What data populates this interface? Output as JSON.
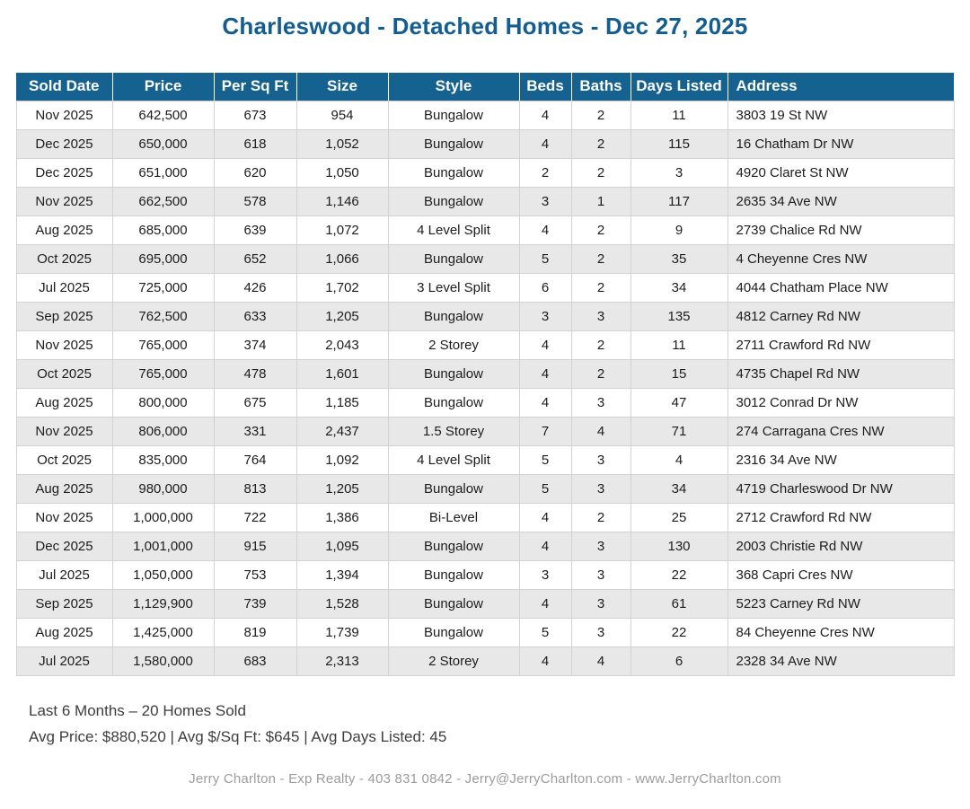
{
  "page": {
    "title": "Charleswood - Detached Homes - Dec 27, 2025"
  },
  "table": {
    "columns": [
      "Sold Date",
      "Price",
      "Per Sq Ft",
      "Size",
      "Style",
      "Beds",
      "Baths",
      "Days Listed",
      "Address"
    ],
    "rows": [
      [
        "Nov 2025",
        "642,500",
        "673",
        "954",
        "Bungalow",
        "4",
        "2",
        "11",
        "3803 19 St NW"
      ],
      [
        "Dec 2025",
        "650,000",
        "618",
        "1,052",
        "Bungalow",
        "4",
        "2",
        "115",
        "16 Chatham Dr NW"
      ],
      [
        "Dec 2025",
        "651,000",
        "620",
        "1,050",
        "Bungalow",
        "2",
        "2",
        "3",
        "4920 Claret St NW"
      ],
      [
        "Nov 2025",
        "662,500",
        "578",
        "1,146",
        "Bungalow",
        "3",
        "1",
        "117",
        "2635 34 Ave NW"
      ],
      [
        "Aug 2025",
        "685,000",
        "639",
        "1,072",
        "4 Level Split",
        "4",
        "2",
        "9",
        "2739 Chalice Rd NW"
      ],
      [
        "Oct 2025",
        "695,000",
        "652",
        "1,066",
        "Bungalow",
        "5",
        "2",
        "35",
        "4 Cheyenne Cres NW"
      ],
      [
        "Jul 2025",
        "725,000",
        "426",
        "1,702",
        "3 Level Split",
        "6",
        "2",
        "34",
        "4044 Chatham Place NW"
      ],
      [
        "Sep 2025",
        "762,500",
        "633",
        "1,205",
        "Bungalow",
        "3",
        "3",
        "135",
        "4812 Carney Rd NW"
      ],
      [
        "Nov 2025",
        "765,000",
        "374",
        "2,043",
        "2 Storey",
        "4",
        "2",
        "11",
        "2711 Crawford Rd NW"
      ],
      [
        "Oct 2025",
        "765,000",
        "478",
        "1,601",
        "Bungalow",
        "4",
        "2",
        "15",
        "4735 Chapel Rd NW"
      ],
      [
        "Aug 2025",
        "800,000",
        "675",
        "1,185",
        "Bungalow",
        "4",
        "3",
        "47",
        "3012 Conrad Dr NW"
      ],
      [
        "Nov 2025",
        "806,000",
        "331",
        "2,437",
        "1.5 Storey",
        "7",
        "4",
        "71",
        "274 Carragana Cres NW"
      ],
      [
        "Oct 2025",
        "835,000",
        "764",
        "1,092",
        "4 Level Split",
        "5",
        "3",
        "4",
        "2316 34 Ave NW"
      ],
      [
        "Aug 2025",
        "980,000",
        "813",
        "1,205",
        "Bungalow",
        "5",
        "3",
        "34",
        "4719 Charleswood Dr NW"
      ],
      [
        "Nov 2025",
        "1,000,000",
        "722",
        "1,386",
        "Bi-Level",
        "4",
        "2",
        "25",
        "2712 Crawford Rd NW"
      ],
      [
        "Dec 2025",
        "1,001,000",
        "915",
        "1,095",
        "Bungalow",
        "4",
        "3",
        "130",
        "2003 Christie Rd NW"
      ],
      [
        "Jul 2025",
        "1,050,000",
        "753",
        "1,394",
        "Bungalow",
        "3",
        "3",
        "22",
        "368 Capri Cres NW"
      ],
      [
        "Sep 2025",
        "1,129,900",
        "739",
        "1,528",
        "Bungalow",
        "4",
        "3",
        "61",
        "5223 Carney Rd NW"
      ],
      [
        "Aug 2025",
        "1,425,000",
        "819",
        "1,739",
        "Bungalow",
        "5",
        "3",
        "22",
        "84 Cheyenne Cres NW"
      ],
      [
        "Jul 2025",
        "1,580,000",
        "683",
        "2,313",
        "2 Storey",
        "4",
        "4",
        "6",
        "2328 34 Ave NW"
      ]
    ]
  },
  "summary": {
    "line1": "Last 6 Months – 20 Homes Sold",
    "line2": "Avg Price: $880,520 | Avg $/Sq Ft: $645 | Avg Days Listed: 45"
  },
  "footer": {
    "credit": "Jerry Charlton - Exp Realty - 403 831 0842 - Jerry@JerryCharlton.com - www.JerryCharlton.com"
  },
  "colors": {
    "header_bg": "#15618f",
    "title_text": "#135d90",
    "row_stripe": "#e8e8e8",
    "cell_border": "#d2d2d2",
    "credit_text": "#9c9c9c"
  }
}
